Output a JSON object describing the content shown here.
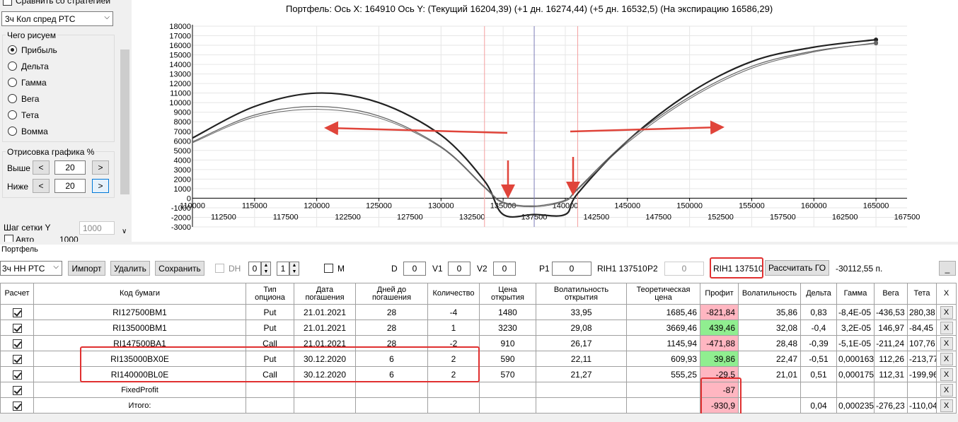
{
  "left_panel": {
    "compare_label": "Сравнить со стратегией",
    "strategy_select": "3ч Кол спред РТС",
    "draw_group_title": "Чего рисуем",
    "radios": [
      {
        "label": "Прибыль",
        "checked": true
      },
      {
        "label": "Дельта",
        "checked": false
      },
      {
        "label": "Гамма",
        "checked": false
      },
      {
        "label": "Вега",
        "checked": false
      },
      {
        "label": "Тета",
        "checked": false
      },
      {
        "label": "Вомма",
        "checked": false
      }
    ],
    "render_group_title": "Отрисовка графика %",
    "above_label": "Выше",
    "above_value": "20",
    "below_label": "Ниже",
    "below_value": "20",
    "btn_less": "<",
    "btn_more": ">",
    "ystep_label": "Шаг сетки Y",
    "ystep_value": "1000",
    "auto_label": "Авто",
    "auto_value": "1000"
  },
  "chart_title": "Портфель: Ось X: 164910 Ось Y: (Текущий 16204,39) (+1 дн. 16274,44) (+5 дн. 16532,5) (На экспирацию 16586,29)",
  "chart_data": {
    "type": "line",
    "title": "Портфель: Ось X: 164910 Ось Y: (Текущий 16204,39) (+1 дн. 16274,44) (+5 дн. 16532,5) (На экспирацию 16586,29)",
    "xlim": [
      110000,
      167500
    ],
    "ylim": [
      -3000,
      18000
    ],
    "y_ticks": [
      18000,
      17000,
      16000,
      15000,
      14000,
      13000,
      12000,
      11000,
      10000,
      9000,
      8000,
      7000,
      6000,
      5000,
      4000,
      3000,
      2000,
      1000,
      0,
      -1000,
      -2000,
      -3000
    ],
    "x_ticks_top": [
      110000,
      115000,
      120000,
      125000,
      130000,
      135000,
      140000,
      145000,
      150000,
      155000,
      160000,
      165000
    ],
    "x_ticks_bottom": [
      112500,
      117500,
      122500,
      127500,
      132500,
      137500,
      142500,
      147500,
      152500,
      157500,
      162500,
      167500
    ],
    "current_price": 137500,
    "range_lines": [
      133500,
      141000
    ],
    "series": [
      {
        "x": [
          110000,
          115000,
          120000,
          125000,
          130000,
          133500,
          135000,
          137500,
          140000,
          141000,
          145000,
          150000,
          155000,
          160000,
          165000
        ],
        "y": [
          6300,
          9600,
          11000,
          10000,
          6600,
          1800,
          -1700,
          -1700,
          -1700,
          500,
          6000,
          11000,
          14300,
          15800,
          16586
        ]
      },
      {
        "x": [
          110000,
          115000,
          120000,
          125000,
          130000,
          133500,
          135000,
          137500,
          140000,
          141000,
          145000,
          150000,
          155000,
          160000,
          165000
        ],
        "y": [
          5900,
          8700,
          9600,
          8600,
          5400,
          1200,
          -400,
          -800,
          -200,
          1000,
          6000,
          10600,
          13800,
          15400,
          16204
        ]
      },
      {
        "x": [
          110000,
          115000,
          120000,
          125000,
          130000,
          133500,
          135000,
          137500,
          140000,
          141000,
          145000,
          150000,
          155000,
          160000,
          165000
        ],
        "y": [
          5800,
          8500,
          9300,
          8400,
          5300,
          1100,
          -500,
          -900,
          -300,
          900,
          5800,
          10400,
          13600,
          15300,
          16274
        ]
      }
    ]
  },
  "portfolio_label": "Портфель",
  "toolbar": {
    "portfolio_select": "3ч НН РТС",
    "import": "Импорт",
    "delete": "Удалить",
    "save": "Сохранить",
    "dh_label": "DH",
    "spin1": "0",
    "spin2": "1",
    "m_label": "M",
    "d_label": "D",
    "d_value": "0",
    "v1_label": "V1",
    "v1_value": "0",
    "v2_label": "V2",
    "v2_value": "0",
    "p1_label": "P1",
    "p1_value": "0",
    "p1_instrument": "RIH1 137510",
    "p2_label": "P2",
    "p2_value": "0",
    "p2_instrument": "RIH1 137510",
    "calc_go": "Рассчитать ГО",
    "go_value": "-30112,55 п.",
    "minimize": "_"
  },
  "table": {
    "headers": [
      "Расчет",
      "Код бумаги",
      "Тип опциона",
      "Дата погашения",
      "Дней до погашения",
      "Количество",
      "Цена открытия",
      "Волатильность открытия",
      "Теоретическая цена",
      "Профит",
      "Волатильность",
      "Дельта",
      "Гамма",
      "Вега",
      "Тета",
      "X"
    ],
    "rows": [
      {
        "code": "RI127500BM1",
        "type": "Put",
        "date": "21.01.2021",
        "days": "28",
        "qty": "-4",
        "price": "1480",
        "vol_open": "33,95",
        "theo": "1685,46",
        "profit": "-821,84",
        "profit_sign": "neg",
        "vol": "35,86",
        "delta": "0,83",
        "gamma": "-8,4E-05",
        "vega": "-436,53",
        "theta": "280,38"
      },
      {
        "code": "RI135000BM1",
        "type": "Put",
        "date": "21.01.2021",
        "days": "28",
        "qty": "1",
        "price": "3230",
        "vol_open": "29,08",
        "theo": "3669,46",
        "profit": "439,46",
        "profit_sign": "pos",
        "vol": "32,08",
        "delta": "-0,4",
        "gamma": "3,2E-05",
        "vega": "146,97",
        "theta": "-84,45"
      },
      {
        "code": "RI147500BA1",
        "type": "Call",
        "date": "21.01.2021",
        "days": "28",
        "qty": "-2",
        "price": "910",
        "vol_open": "26,17",
        "theo": "1145,94",
        "profit": "-471,88",
        "profit_sign": "neg",
        "vol": "28,48",
        "delta": "-0,39",
        "gamma": "-5,1E-05",
        "vega": "-211,24",
        "theta": "107,76"
      },
      {
        "code": "RI135000BX0E",
        "type": "Put",
        "date": "30.12.2020",
        "days": "6",
        "qty": "2",
        "price": "590",
        "vol_open": "22,11",
        "theo": "609,93",
        "profit": "39,86",
        "profit_sign": "pos",
        "vol": "22,47",
        "delta": "-0,51",
        "gamma": "0,000163",
        "vega": "112,26",
        "theta": "-213,77"
      },
      {
        "code": "RI140000BL0E",
        "type": "Call",
        "date": "30.12.2020",
        "days": "6",
        "qty": "2",
        "price": "570",
        "vol_open": "21,27",
        "theo": "555,25",
        "profit": "-29,5",
        "profit_sign": "neg",
        "vol": "21,01",
        "delta": "0,51",
        "gamma": "0,000175",
        "vega": "112,31",
        "theta": "-199,96"
      }
    ],
    "fixed_row": {
      "code": "FixedProfit",
      "profit": "-87"
    },
    "total_row": {
      "code": "Итого:",
      "profit": "-930,9",
      "delta": "0,04",
      "gamma": "0,000235",
      "vega": "-276,23",
      "theta": "-110,04"
    },
    "x_label": "X"
  },
  "colors": {
    "curve_main": "#222222",
    "curve_alt": "#666666",
    "current_line": "#7b7bb8",
    "range_line": "#f4a0a0",
    "arrow": "#e0443a",
    "highlight_box": "#e03030",
    "profit_neg": "#ffb6c1",
    "profit_pos": "#90ee90"
  }
}
